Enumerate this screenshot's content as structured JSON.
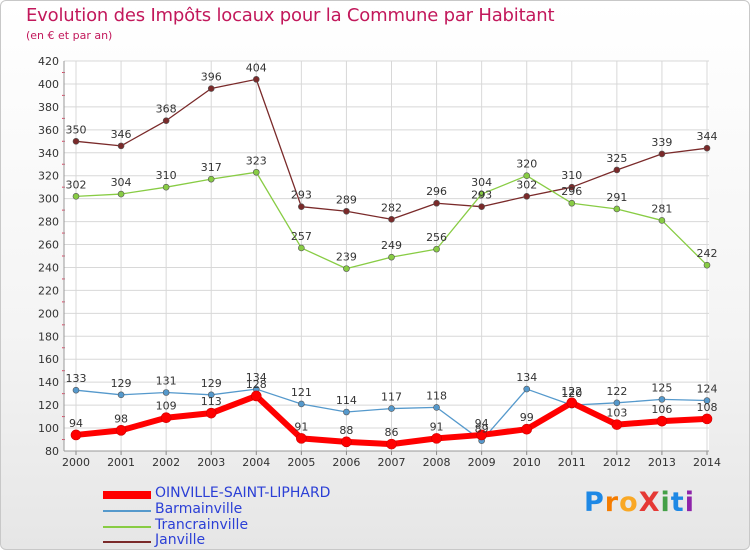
{
  "chart_data": {
    "type": "line",
    "title": "Evolution des Impôts locaux pour la Commune par Habitant",
    "subtitle": "(en € et par an)",
    "categories": [
      "2000",
      "2001",
      "2002",
      "2003",
      "2004",
      "2005",
      "2006",
      "2007",
      "2008",
      "2009",
      "2010",
      "2011",
      "2012",
      "2013",
      "2014"
    ],
    "ylim": [
      80,
      420
    ],
    "yticks": [
      "80",
      "100",
      "120",
      "140",
      "160",
      "180",
      "200",
      "220",
      "240",
      "260",
      "280",
      "300",
      "320",
      "340",
      "360",
      "380",
      "400",
      "420"
    ],
    "series": [
      {
        "name": "OINVILLE-SAINT-LIPHARD",
        "color": "#ff0000",
        "values": [
          94,
          98,
          109,
          113,
          128,
          91,
          88,
          86,
          91,
          94,
          99,
          122,
          103,
          106,
          108
        ],
        "labels": [
          "94",
          "98",
          "109",
          "113",
          "128",
          "91",
          "88",
          "86",
          "91",
          "94",
          "99",
          "122",
          "103",
          "106",
          "108"
        ]
      },
      {
        "name": "Barmainville",
        "color": "#5599cc",
        "values": [
          133,
          129,
          131,
          129,
          134,
          121,
          114,
          117,
          118,
          89,
          134,
          120,
          122,
          125,
          124
        ],
        "labels": [
          "133",
          "129",
          "131",
          "129",
          "134",
          "121",
          "114",
          "117",
          "118",
          "89",
          "134",
          "120",
          "122",
          "125",
          "124"
        ]
      },
      {
        "name": "Trancrainville",
        "color": "#88cc44",
        "values": [
          302,
          304,
          310,
          317,
          323,
          257,
          239,
          249,
          256,
          304,
          320,
          296,
          291,
          281,
          242
        ],
        "labels": [
          "302",
          "304",
          "310",
          "317",
          "323",
          "257",
          "239",
          "249",
          "256",
          "304",
          "320",
          "296",
          "291",
          "281",
          "242"
        ]
      },
      {
        "name": "Janville",
        "color": "#7a2a2a",
        "values": [
          350,
          346,
          368,
          396,
          404,
          293,
          289,
          282,
          296,
          293,
          302,
          310,
          325,
          339,
          344
        ],
        "labels": [
          "350",
          "346",
          "368",
          "396",
          "404",
          "293",
          "289",
          "282",
          "296",
          "293",
          "302",
          "310",
          "325",
          "339",
          "344"
        ]
      }
    ]
  },
  "logo": {
    "text": "ProXiti"
  }
}
